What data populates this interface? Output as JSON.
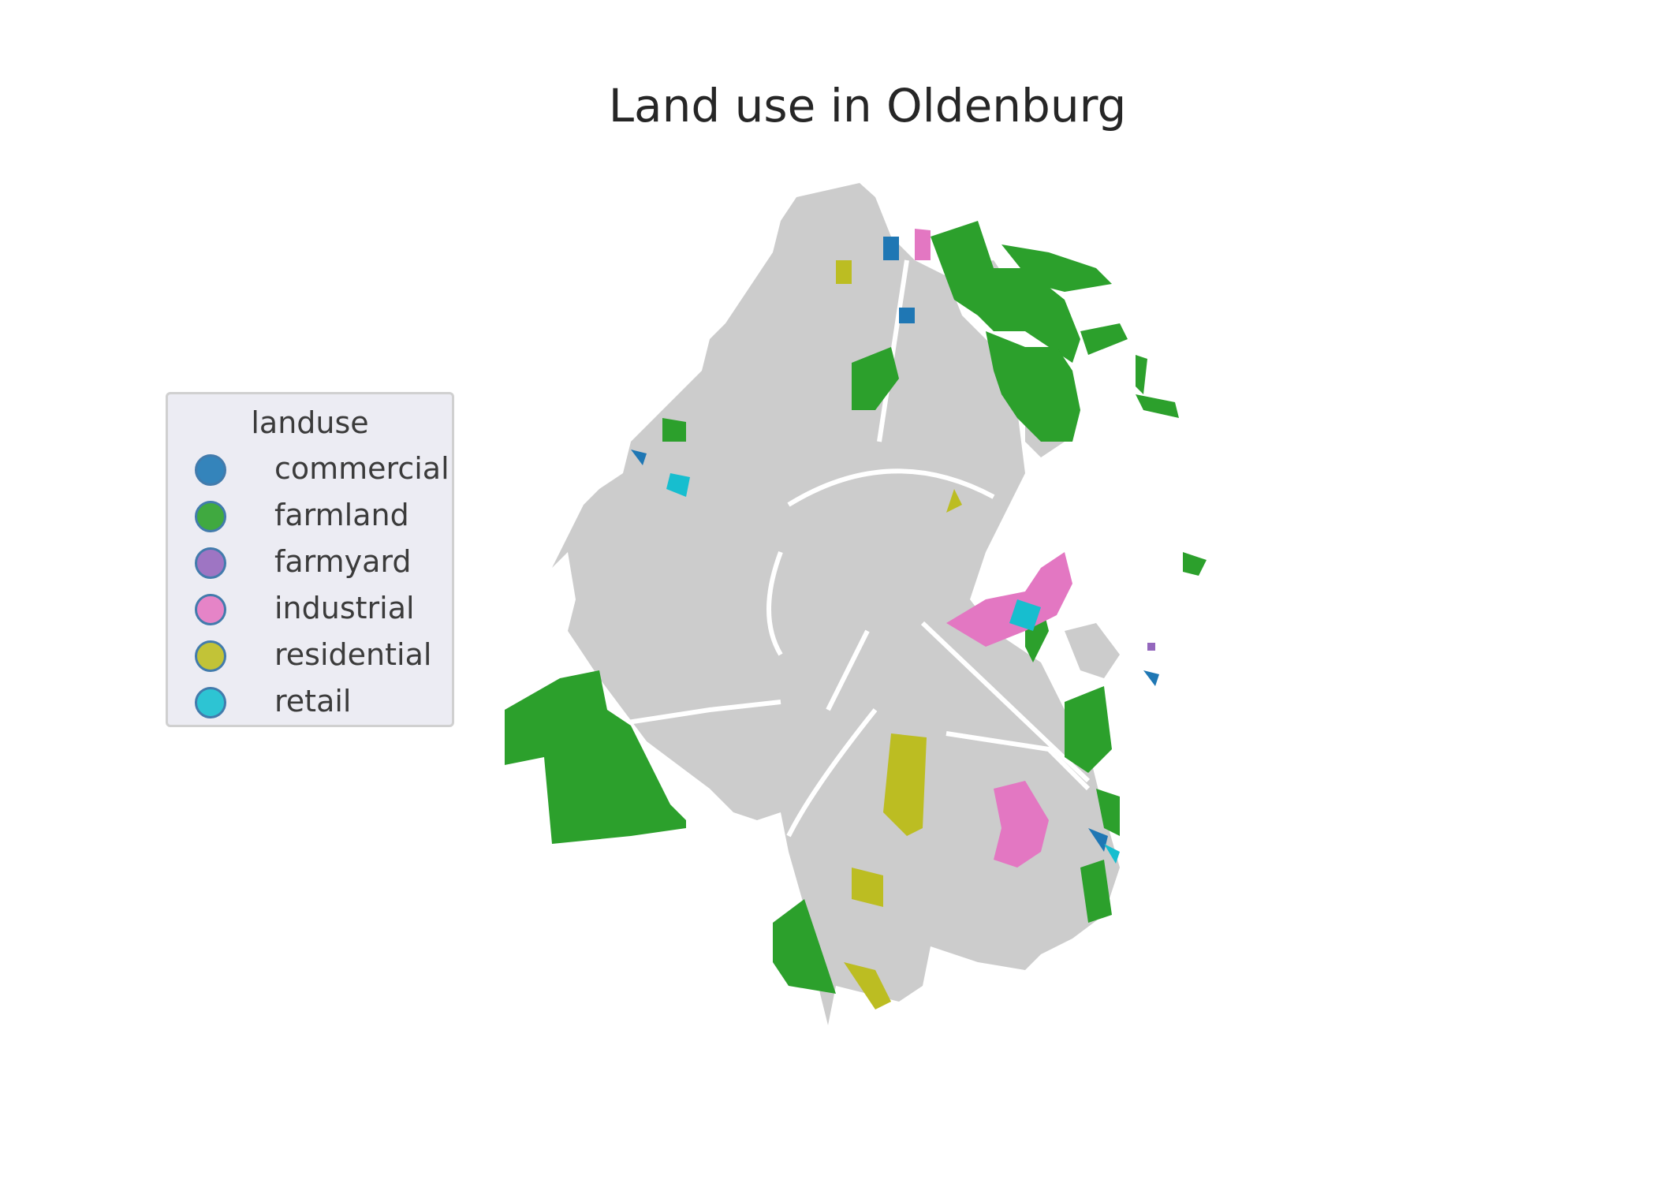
{
  "title": "Land use in Oldenburg",
  "legend": {
    "title": "landuse",
    "items": [
      {
        "label": "commercial",
        "color": "#1f77b4"
      },
      {
        "label": "farmland",
        "color": "#2ca02c"
      },
      {
        "label": "farmyard",
        "color": "#9467bd"
      },
      {
        "label": "industrial",
        "color": "#e377c2"
      },
      {
        "label": "residential",
        "color": "#bcbd22"
      },
      {
        "label": "retail",
        "color": "#17becf"
      }
    ]
  },
  "colors": {
    "other_landuse": "#cccccc",
    "background": "#ffffff"
  }
}
